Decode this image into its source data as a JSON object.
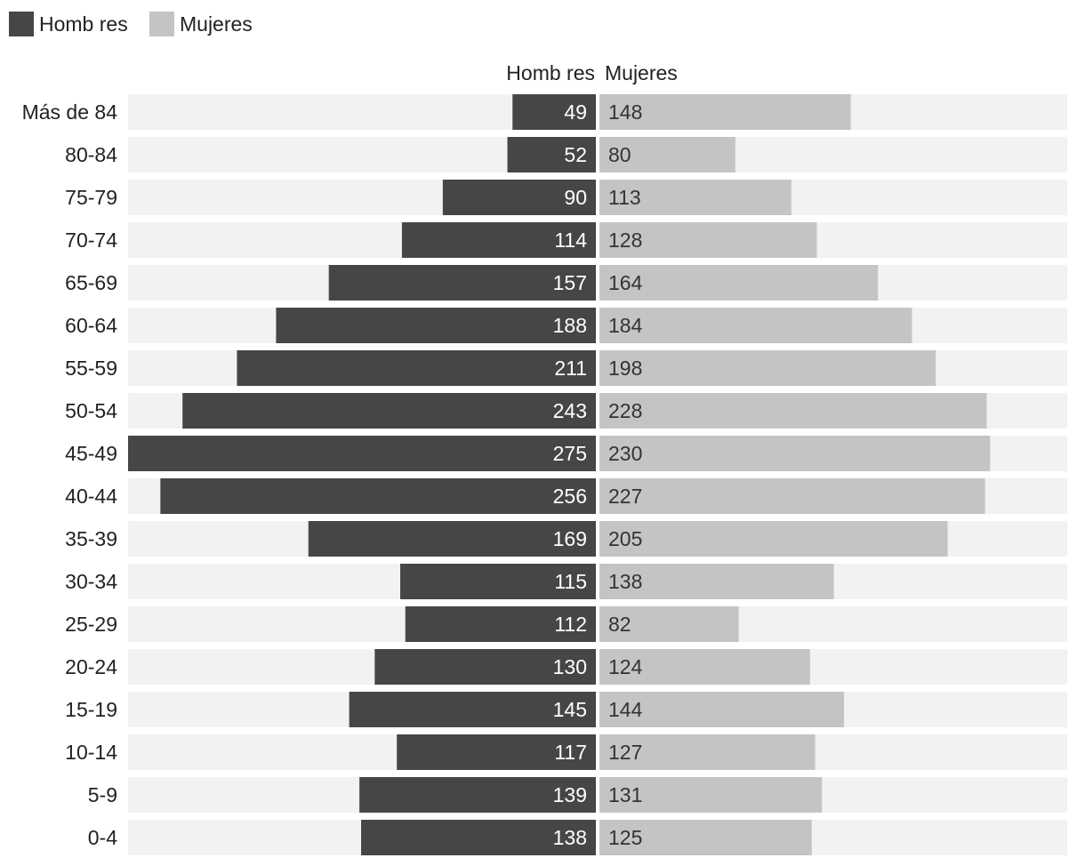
{
  "chart_data": {
    "type": "bar",
    "subtype": "population-pyramid",
    "title": "",
    "legend": {
      "placement": "top-left",
      "entries": [
        {
          "name": "Homb res",
          "color": "#464646"
        },
        {
          "name": "Mujeres",
          "color": "#c4c4c4"
        }
      ]
    },
    "column_headers": {
      "left": "Homb res",
      "right": "Mujeres"
    },
    "categories": [
      "Más de 84",
      "80-84",
      "75-79",
      "70-74",
      "65-69",
      "60-64",
      "55-59",
      "50-54",
      "45-49",
      "40-44",
      "35-39",
      "30-34",
      "25-29",
      "20-24",
      "15-19",
      "10-14",
      "5-9",
      "0-4"
    ],
    "series": [
      {
        "name": "Homb res",
        "color": "#464646",
        "values": [
          49,
          52,
          90,
          114,
          157,
          188,
          211,
          243,
          275,
          256,
          169,
          115,
          112,
          130,
          145,
          117,
          139,
          138
        ]
      },
      {
        "name": "Mujeres",
        "color": "#c4c4c4",
        "values": [
          148,
          80,
          113,
          128,
          164,
          184,
          198,
          228,
          230,
          227,
          205,
          138,
          82,
          124,
          144,
          127,
          131,
          125
        ]
      }
    ],
    "xlim": [
      0,
      275
    ],
    "track_color": "#f2f2f2",
    "grid": false
  }
}
